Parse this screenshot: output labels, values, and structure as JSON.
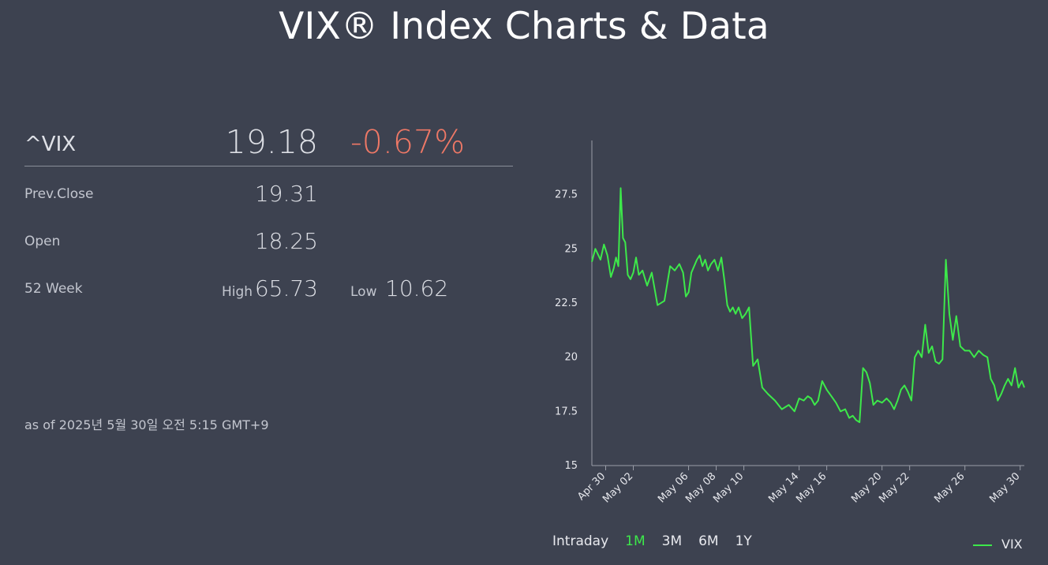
{
  "header": {
    "title": "VIX® Index Charts & Data"
  },
  "quote": {
    "symbol": "^VIX",
    "price": "19.18",
    "change": "-0.67%",
    "prev_close_label": "Prev.Close",
    "prev_close": "19.31",
    "open_label": "Open",
    "open": "18.25",
    "week52_label": "52 Week",
    "high_label": "High",
    "high": "65.73",
    "low_label": "Low",
    "low": "10.62",
    "as_of": "as of 2025년 5월 30일 오전 5:15 GMT+9"
  },
  "colors": {
    "line": "#3de84a",
    "negative": "#ee7866",
    "active_tab": "#3de84a"
  },
  "tabs": [
    {
      "label": "Intraday",
      "active": false
    },
    {
      "label": "1M",
      "active": true
    },
    {
      "label": "3M",
      "active": false
    },
    {
      "label": "6M",
      "active": false
    },
    {
      "label": "1Y",
      "active": false
    }
  ],
  "legend": {
    "label": "VIX"
  },
  "chart_data": {
    "type": "line",
    "ylim": [
      15,
      30
    ],
    "y_ticks": [
      "15",
      "17.5",
      "20",
      "22.5",
      "25",
      "27.5"
    ],
    "x_ticks": [
      "Apr 30",
      "May 02",
      "May 06",
      "May 08",
      "May 10",
      "May 14",
      "May 16",
      "May 20",
      "May 22",
      "May 26",
      "May 30"
    ],
    "series": [
      {
        "name": "VIX",
        "values": [
          [
            "Apr 29",
            24.4
          ],
          [
            "Apr 29",
            25.0
          ],
          [
            "Apr 30",
            24.5
          ],
          [
            "Apr 30",
            25.2
          ],
          [
            "Apr 30",
            24.7
          ],
          [
            "Apr 30",
            23.7
          ],
          [
            "May 01",
            24.1
          ],
          [
            "May 01",
            24.6
          ],
          [
            "May 01",
            24.2
          ],
          [
            "May 01",
            27.8
          ],
          [
            "May 01",
            25.5
          ],
          [
            "May 01",
            25.3
          ],
          [
            "May 02",
            23.8
          ],
          [
            "May 02",
            23.6
          ],
          [
            "May 02",
            23.9
          ],
          [
            "May 02",
            24.6
          ],
          [
            "May 02",
            23.8
          ],
          [
            "May 03",
            24.0
          ],
          [
            "May 03",
            23.3
          ],
          [
            "May 03",
            23.9
          ],
          [
            "May 04",
            22.4
          ],
          [
            "May 04",
            22.6
          ],
          [
            "May 05",
            24.2
          ],
          [
            "May 05",
            24.0
          ],
          [
            "May 05",
            24.3
          ],
          [
            "May 06",
            23.9
          ],
          [
            "May 06",
            22.8
          ],
          [
            "May 06",
            23.0
          ],
          [
            "May 06",
            23.9
          ],
          [
            "May 06",
            24.2
          ],
          [
            "May 07",
            24.5
          ],
          [
            "May 07",
            24.7
          ],
          [
            "May 07",
            24.2
          ],
          [
            "May 07",
            24.5
          ],
          [
            "May 07",
            24.0
          ],
          [
            "May 08",
            24.3
          ],
          [
            "May 08",
            24.5
          ],
          [
            "May 08",
            24.0
          ],
          [
            "May 08",
            24.6
          ],
          [
            "May 09",
            23.5
          ],
          [
            "May 09",
            22.4
          ],
          [
            "May 09",
            22.1
          ],
          [
            "May 09",
            22.3
          ],
          [
            "May 09",
            22.0
          ],
          [
            "May 10",
            22.3
          ],
          [
            "May 10",
            21.8
          ],
          [
            "May 10",
            22.0
          ],
          [
            "May 10",
            22.3
          ],
          [
            "May 11",
            19.6
          ],
          [
            "May 11",
            19.9
          ],
          [
            "May 11",
            18.6
          ],
          [
            "May 12",
            18.3
          ],
          [
            "May 12",
            18.0
          ],
          [
            "May 13",
            17.6
          ],
          [
            "May 13",
            17.8
          ],
          [
            "May 14",
            17.5
          ],
          [
            "May 14",
            18.1
          ],
          [
            "May 14",
            18.0
          ],
          [
            "May 15",
            18.2
          ],
          [
            "May 15",
            18.1
          ],
          [
            "May 15",
            17.8
          ],
          [
            "May 15",
            18.0
          ],
          [
            "May 16",
            18.9
          ],
          [
            "May 16",
            18.5
          ],
          [
            "May 16",
            18.2
          ],
          [
            "May 17",
            17.9
          ],
          [
            "May 17",
            17.5
          ],
          [
            "May 17",
            17.6
          ],
          [
            "May 18",
            17.2
          ],
          [
            "May 18",
            17.3
          ],
          [
            "May 18",
            17.1
          ],
          [
            "May 18",
            17.0
          ],
          [
            "May 19",
            19.5
          ],
          [
            "May 19",
            19.3
          ],
          [
            "May 19",
            18.8
          ],
          [
            "May 19",
            17.8
          ],
          [
            "May 20",
            18.0
          ],
          [
            "May 20",
            17.9
          ],
          [
            "May 20",
            18.1
          ],
          [
            "May 21",
            17.9
          ],
          [
            "May 21",
            17.6
          ],
          [
            "May 21",
            18.0
          ],
          [
            "May 21",
            18.5
          ],
          [
            "May 22",
            18.7
          ],
          [
            "May 22",
            18.4
          ],
          [
            "May 22",
            18.0
          ],
          [
            "May 22",
            20.0
          ],
          [
            "May 23",
            20.3
          ],
          [
            "May 23",
            20.0
          ],
          [
            "May 23",
            21.5
          ],
          [
            "May 23",
            20.2
          ],
          [
            "May 24",
            20.5
          ],
          [
            "May 24",
            19.8
          ],
          [
            "May 24",
            19.7
          ],
          [
            "May 24",
            19.9
          ],
          [
            "May 25",
            24.5
          ],
          [
            "May 25",
            22.0
          ],
          [
            "May 25",
            20.8
          ],
          [
            "May 25",
            21.9
          ],
          [
            "May 26",
            20.5
          ],
          [
            "May 26",
            20.3
          ],
          [
            "May 26",
            20.3
          ],
          [
            "May 27",
            20.0
          ],
          [
            "May 27",
            20.3
          ],
          [
            "May 27",
            20.1
          ],
          [
            "May 28",
            20.0
          ],
          [
            "May 28",
            19.0
          ],
          [
            "May 28",
            18.7
          ],
          [
            "May 28",
            18.0
          ],
          [
            "May 29",
            18.3
          ],
          [
            "May 29",
            18.7
          ],
          [
            "May 29",
            19.0
          ],
          [
            "May 29",
            18.7
          ],
          [
            "May 30",
            19.5
          ],
          [
            "May 30",
            18.6
          ],
          [
            "May 30",
            18.9
          ],
          [
            "May 30",
            18.6
          ]
        ]
      }
    ]
  }
}
